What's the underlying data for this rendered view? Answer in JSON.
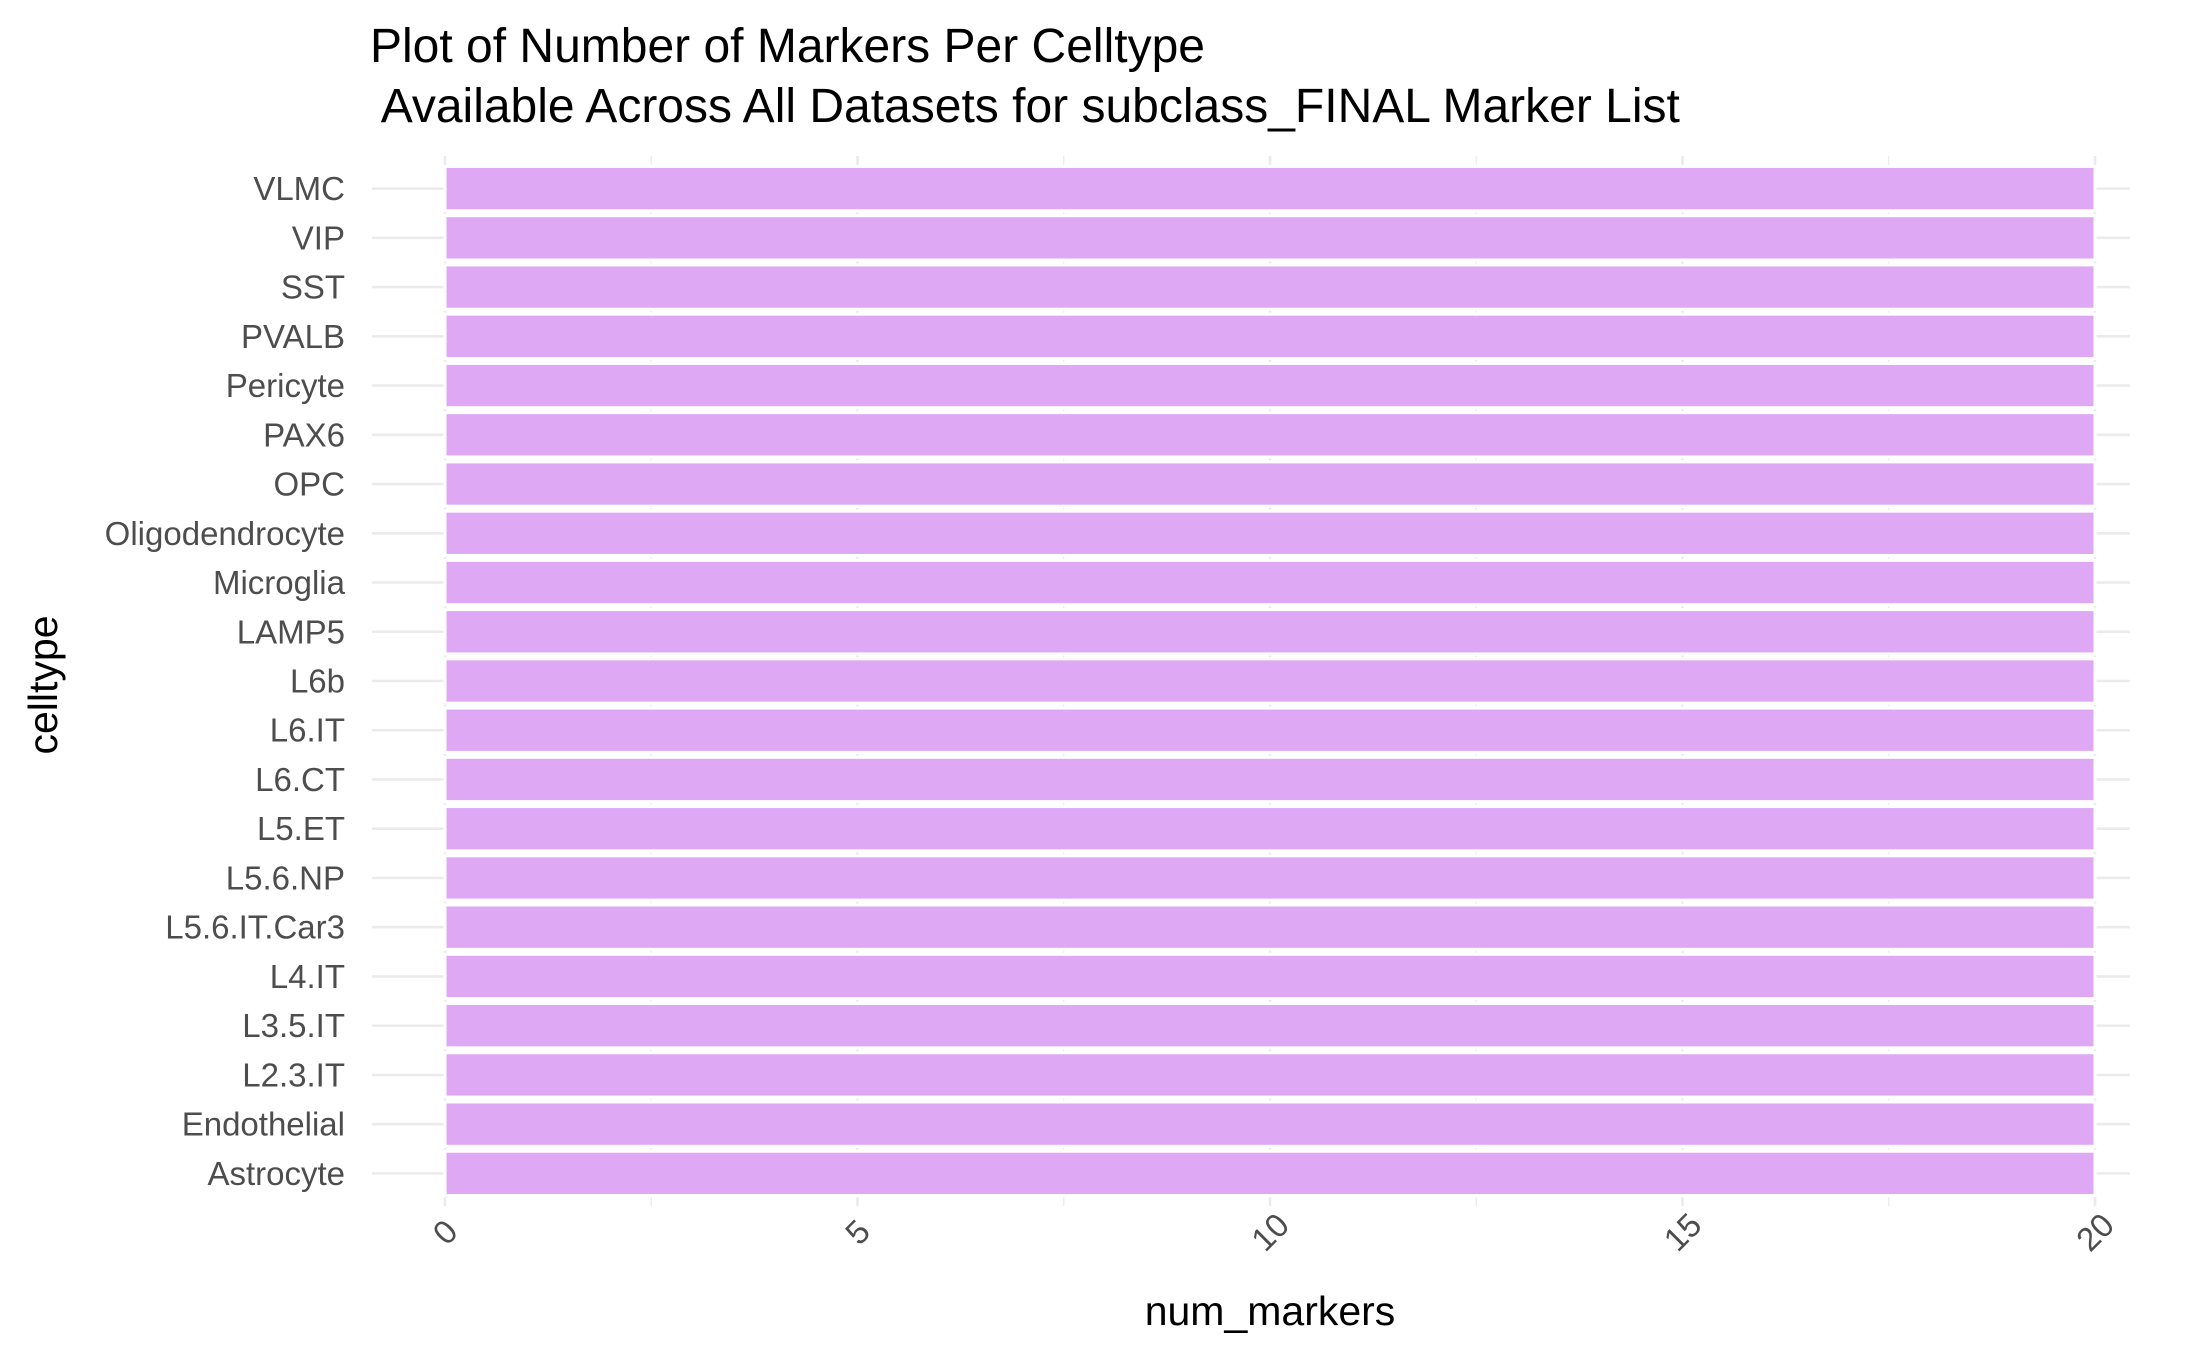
{
  "chart_data": {
    "type": "bar",
    "orientation": "horizontal",
    "title_lines": [
      "Plot of Number of Markers Per Celltype",
      " Available Across All Datasets for subclass_FINAL Marker List"
    ],
    "xlabel": "num_markers",
    "ylabel": "celltype",
    "categories": [
      "Astrocyte",
      "Endothelial",
      "L2.3.IT",
      "L3.5.IT",
      "L4.IT",
      "L5.6.IT.Car3",
      "L5.6.NP",
      "L5.ET",
      "L6.CT",
      "L6.IT",
      "L6b",
      "LAMP5",
      "Microglia",
      "Oligodendrocyte",
      "OPC",
      "PAX6",
      "Pericyte",
      "PVALB",
      "SST",
      "VIP",
      "VLMC"
    ],
    "values": [
      20,
      20,
      20,
      20,
      20,
      20,
      20,
      20,
      20,
      20,
      20,
      20,
      20,
      20,
      20,
      20,
      20,
      20,
      20,
      20,
      20
    ],
    "xlim": [
      0,
      20
    ],
    "xticks": [
      "0",
      "5",
      "10",
      "15",
      "20"
    ],
    "tick_rotation": "45 degrees",
    "grid": true,
    "legend": "none",
    "bar_color": "#dfa8f4",
    "bar_outline": "#ffffff"
  }
}
